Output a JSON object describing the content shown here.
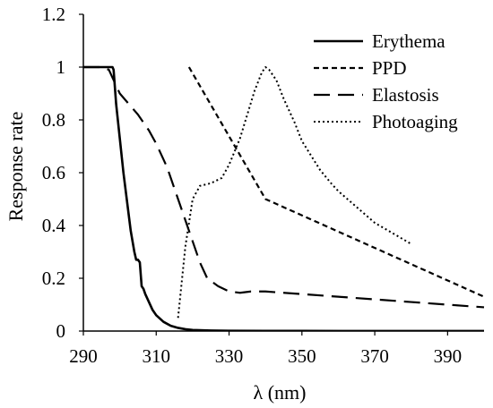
{
  "chart_data": {
    "type": "line",
    "title": "",
    "xlabel": "λ (nm)",
    "ylabel": "Response rate",
    "xlim": [
      290,
      400
    ],
    "ylim": [
      0,
      1.2
    ],
    "xticks": [
      "290",
      "310",
      "330",
      "350",
      "370",
      "390"
    ],
    "yticks": [
      "0",
      "0.2",
      "0.4",
      "0.6",
      "0.8",
      "1",
      "1.2"
    ],
    "grid": false,
    "legend_position": "top-right",
    "series": [
      {
        "name": "Erythema",
        "style": "solid",
        "x": [
          290,
          298,
          298.3,
          299,
          300,
          301,
          302,
          303,
          304,
          304.5,
          305,
          305.5,
          306,
          306.5,
          307,
          308,
          309,
          310,
          312,
          314,
          316,
          318,
          320,
          325,
          330,
          340,
          350,
          400
        ],
        "y": [
          1.0,
          1.0,
          0.99,
          0.86,
          0.73,
          0.6,
          0.49,
          0.38,
          0.3,
          0.27,
          0.27,
          0.26,
          0.17,
          0.16,
          0.14,
          0.11,
          0.08,
          0.06,
          0.035,
          0.02,
          0.012,
          0.007,
          0.004,
          0.002,
          0.0012,
          0.0008,
          0.0005,
          0.0003
        ]
      },
      {
        "name": "PPD",
        "style": "short-dash",
        "x": [
          319,
          340,
          400
        ],
        "y": [
          1.0,
          0.5,
          0.13
        ]
      },
      {
        "name": "Elastosis",
        "style": "long-dash",
        "x": [
          290,
          295,
          297,
          300,
          305,
          308,
          310,
          313,
          316,
          318,
          320,
          322,
          324,
          327,
          330,
          333,
          336,
          340,
          345,
          350,
          360,
          370,
          380,
          390,
          400
        ],
        "y": [
          1.0,
          1.0,
          0.99,
          0.9,
          0.82,
          0.76,
          0.71,
          0.62,
          0.5,
          0.42,
          0.34,
          0.26,
          0.2,
          0.17,
          0.15,
          0.145,
          0.15,
          0.15,
          0.145,
          0.14,
          0.13,
          0.12,
          0.11,
          0.1,
          0.09
        ]
      },
      {
        "name": "Photoaging",
        "style": "dotted",
        "x": [
          316,
          318,
          320,
          322,
          325,
          328,
          330,
          333,
          335,
          337,
          339,
          340,
          341,
          343,
          345,
          348,
          350,
          355,
          358,
          360,
          365,
          370,
          375,
          380
        ],
        "y": [
          0.05,
          0.32,
          0.5,
          0.55,
          0.56,
          0.58,
          0.63,
          0.73,
          0.82,
          0.91,
          0.98,
          1.0,
          0.99,
          0.95,
          0.88,
          0.79,
          0.72,
          0.61,
          0.56,
          0.53,
          0.47,
          0.41,
          0.37,
          0.33
        ]
      }
    ]
  }
}
